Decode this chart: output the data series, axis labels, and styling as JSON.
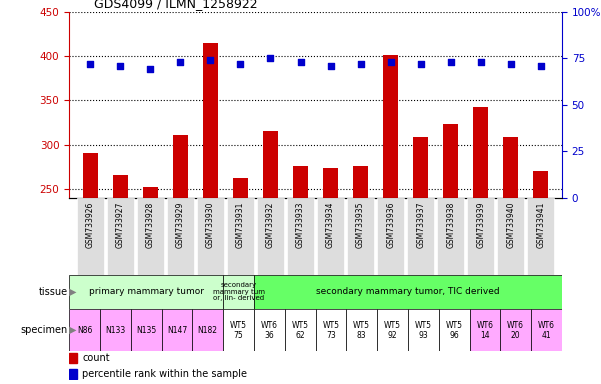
{
  "title": "GDS4099 / ILMN_1258922",
  "samples": [
    "GSM733926",
    "GSM733927",
    "GSM733928",
    "GSM733929",
    "GSM733930",
    "GSM733931",
    "GSM733932",
    "GSM733933",
    "GSM733934",
    "GSM733935",
    "GSM733936",
    "GSM733937",
    "GSM733938",
    "GSM733939",
    "GSM733940",
    "GSM733941"
  ],
  "counts": [
    290,
    266,
    252,
    311,
    415,
    262,
    315,
    276,
    273,
    276,
    401,
    309,
    323,
    342,
    308,
    270
  ],
  "percentiles": [
    72,
    71,
    69,
    73,
    74,
    72,
    75,
    73,
    71,
    72,
    73,
    72,
    73,
    73,
    72,
    71
  ],
  "ylim_left": [
    240,
    450
  ],
  "ylim_right": [
    0,
    100
  ],
  "yticks_left": [
    250,
    300,
    350,
    400,
    450
  ],
  "yticks_right": [
    0,
    25,
    50,
    75,
    100
  ],
  "bar_color": "#cc0000",
  "dot_color": "#0000cc",
  "bar_width": 0.5,
  "tissue_groups": [
    {
      "text": "primary mammary tumor",
      "start": 0,
      "end": 4,
      "color": "#ccffcc"
    },
    {
      "text": "secondary\nmammary tum\nor, lin- derived",
      "start": 5,
      "end": 5,
      "color": "#ccffcc"
    },
    {
      "text": "secondary mammary tumor, TIC derived",
      "start": 6,
      "end": 15,
      "color": "#66ff66"
    }
  ],
  "specimen_labels": [
    {
      "text": "N86",
      "start": 0,
      "end": 0,
      "color": "#ffaaff"
    },
    {
      "text": "N133",
      "start": 1,
      "end": 1,
      "color": "#ffaaff"
    },
    {
      "text": "N135",
      "start": 2,
      "end": 2,
      "color": "#ffaaff"
    },
    {
      "text": "N147",
      "start": 3,
      "end": 3,
      "color": "#ffaaff"
    },
    {
      "text": "N182",
      "start": 4,
      "end": 4,
      "color": "#ffaaff"
    },
    {
      "text": "WT5\n75",
      "start": 5,
      "end": 5,
      "color": "#ffffff"
    },
    {
      "text": "WT6\n36",
      "start": 6,
      "end": 6,
      "color": "#ffffff"
    },
    {
      "text": "WT5\n62",
      "start": 7,
      "end": 7,
      "color": "#ffffff"
    },
    {
      "text": "WT5\n73",
      "start": 8,
      "end": 8,
      "color": "#ffffff"
    },
    {
      "text": "WT5\n83",
      "start": 9,
      "end": 9,
      "color": "#ffffff"
    },
    {
      "text": "WT5\n92",
      "start": 10,
      "end": 10,
      "color": "#ffffff"
    },
    {
      "text": "WT5\n93",
      "start": 11,
      "end": 11,
      "color": "#ffffff"
    },
    {
      "text": "WT5\n96",
      "start": 12,
      "end": 12,
      "color": "#ffffff"
    },
    {
      "text": "WT6\n14",
      "start": 13,
      "end": 13,
      "color": "#ffaaff"
    },
    {
      "text": "WT6\n20",
      "start": 14,
      "end": 14,
      "color": "#ffaaff"
    },
    {
      "text": "WT6\n41",
      "start": 15,
      "end": 15,
      "color": "#ffaaff"
    }
  ],
  "xticklabel_bg": "#dddddd",
  "legend_count_color": "#cc0000",
  "legend_dot_color": "#0000cc"
}
